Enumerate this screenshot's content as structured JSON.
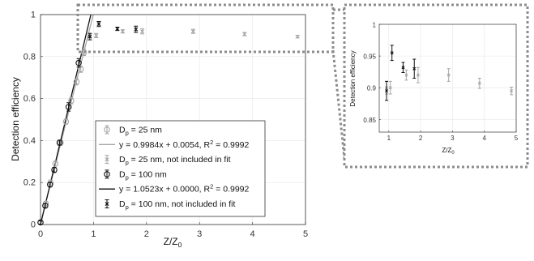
{
  "chart_data": [
    {
      "type": "scatter",
      "xlabel": "Z/Z",
      "xlabel_sub": "0",
      "ylabel": "Detection efficiency",
      "xlim": [
        0,
        5
      ],
      "ylim": [
        0,
        1
      ],
      "xticks": [
        "0",
        "1",
        "2",
        "3",
        "4",
        "5"
      ],
      "yticks": [
        "0",
        "0.2",
        "0.4",
        "0.6",
        "0.8",
        "1"
      ],
      "grid": true,
      "legend_position": "center-right",
      "legend": [
        {
          "pre": "D",
          "sub": "p",
          "post": " =  25 nm"
        },
        {
          "pre": "y = 0.9984x + 0.0054, R",
          "sup": "2",
          "post": " = 0.9992"
        },
        {
          "pre": "D",
          "sub": "p",
          "post": " = 25 nm, not included in fit"
        },
        {
          "pre": "D",
          "sub": "p",
          "post": " =  100 nm"
        },
        {
          "pre": "y = 1.0523x + 0.0000, R",
          "sup": "2",
          "post": " = 0.9992"
        },
        {
          "pre": "D",
          "sub": "p",
          "post": " = 100 nm, not included in fit"
        }
      ],
      "colors": {
        "d25": "#a6a6a6",
        "d100": "#111111",
        "fit25": "#a6a6a6",
        "fit100": "#111111"
      },
      "series": [
        {
          "name": "D_p = 25 nm",
          "marker": "circle",
          "x": [
            0.0,
            0.1,
            0.19,
            0.28,
            0.38,
            0.48,
            0.58,
            0.68,
            0.76,
            0.82
          ],
          "y": [
            0.01,
            0.1,
            0.2,
            0.29,
            0.39,
            0.49,
            0.59,
            0.68,
            0.74,
            0.82
          ],
          "err": [
            0.008,
            0.01,
            0.012,
            0.012,
            0.012,
            0.012,
            0.015,
            0.015,
            0.015,
            0.015
          ]
        },
        {
          "name": "D_p = 25 nm, not included in fit",
          "marker": "x",
          "x": [
            0.93,
            1.05,
            1.55,
            1.92,
            2.88,
            3.85,
            4.85
          ],
          "y": [
            0.9,
            0.9,
            0.92,
            0.92,
            0.92,
            0.907,
            0.895
          ],
          "err": [
            0.01,
            0.01,
            0.008,
            0.012,
            0.01,
            0.008,
            0.006
          ]
        },
        {
          "name": "D_p = 100 nm",
          "marker": "circle",
          "x": [
            0.0,
            0.09,
            0.18,
            0.26,
            0.36,
            0.53,
            0.72
          ],
          "y": [
            0.01,
            0.09,
            0.19,
            0.26,
            0.39,
            0.56,
            0.77
          ],
          "err": [
            0.008,
            0.01,
            0.01,
            0.012,
            0.012,
            0.02,
            0.02
          ]
        },
        {
          "name": "D_p = 100 nm, not included in fit",
          "marker": "x",
          "x": [
            0.93,
            1.1,
            1.45,
            1.8
          ],
          "y": [
            0.895,
            0.955,
            0.932,
            0.93
          ],
          "err": [
            0.015,
            0.012,
            0.008,
            0.015
          ]
        }
      ],
      "fits": [
        {
          "name": "y = 0.9984x + 0.0054, R2 = 0.9992",
          "slope": 0.9984,
          "intercept": 0.0054
        },
        {
          "name": "y = 1.0523x + 0.0000, R2 = 0.9992",
          "slope": 1.0523,
          "intercept": 0.0
        }
      ]
    },
    {
      "type": "scatter",
      "xlabel": "Z/Z",
      "xlabel_sub": "0",
      "ylabel": "Detection efficiency",
      "xlim": [
        0.7,
        5
      ],
      "ylim": [
        0.83,
        1
      ],
      "xticks": [
        "1",
        "2",
        "3",
        "4",
        "5"
      ],
      "yticks": [
        "0.85",
        "0.9",
        "0.95",
        "1"
      ],
      "grid": true,
      "series": [
        {
          "name": "D_p = 25 nm, not included in fit",
          "marker": "x",
          "x": [
            0.93,
            1.05,
            1.55,
            1.92,
            2.88,
            3.85,
            4.85
          ],
          "y": [
            0.9,
            0.9,
            0.92,
            0.92,
            0.92,
            0.907,
            0.895
          ],
          "err": [
            0.01,
            0.01,
            0.008,
            0.012,
            0.01,
            0.008,
            0.006
          ]
        },
        {
          "name": "D_p = 100 nm, not included in fit",
          "marker": "x",
          "x": [
            0.93,
            1.1,
            1.45,
            1.8
          ],
          "y": [
            0.895,
            0.955,
            0.932,
            0.93
          ],
          "err": [
            0.015,
            0.012,
            0.008,
            0.015
          ]
        }
      ]
    }
  ]
}
